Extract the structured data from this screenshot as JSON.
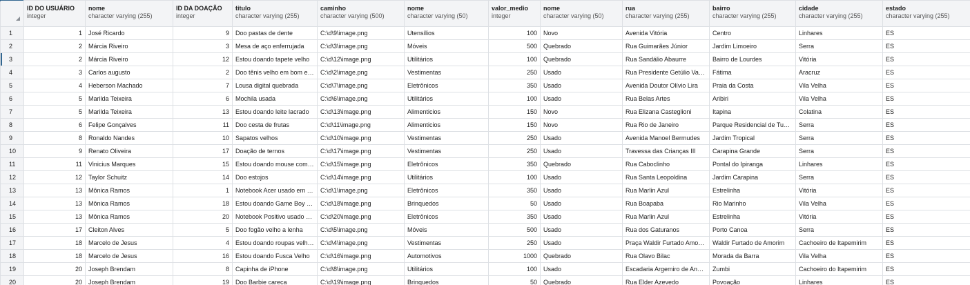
{
  "columns": [
    {
      "name": "ID DO USUÁRIO",
      "type": "integer",
      "numeric": true
    },
    {
      "name": "nome",
      "type": "character varying (255)",
      "numeric": false
    },
    {
      "name": "ID DA DOAÇÃO",
      "type": "integer",
      "numeric": true
    },
    {
      "name": "titulo",
      "type": "character varying (255)",
      "numeric": false
    },
    {
      "name": "caminho",
      "type": "character varying (500)",
      "numeric": false
    },
    {
      "name": "nome",
      "type": "character varying (50)",
      "numeric": false
    },
    {
      "name": "valor_medio",
      "type": "integer",
      "numeric": true
    },
    {
      "name": "nome",
      "type": "character varying (50)",
      "numeric": false
    },
    {
      "name": "rua",
      "type": "character varying (255)",
      "numeric": false
    },
    {
      "name": "bairro",
      "type": "character varying (255)",
      "numeric": false
    },
    {
      "name": "cidade",
      "type": "character varying (255)",
      "numeric": false
    },
    {
      "name": "estado",
      "type": "character varying (255)",
      "numeric": false
    }
  ],
  "rows": [
    {
      "n": "1",
      "c": [
        "1",
        "José Ricardo",
        "9",
        "Doo pastas de dente",
        "C:\\d\\9\\image.png",
        "Utensílios",
        "100",
        "Novo",
        "Avenida Vitória",
        "Centro",
        "Linhares",
        "ES"
      ]
    },
    {
      "n": "2",
      "c": [
        "2",
        "Márcia Riveiro",
        "3",
        "Mesa de aço enferrujada",
        "C:\\d\\3\\image.png",
        "Móveis",
        "500",
        "Quebrado",
        "Rua Guimarães Júnior",
        "Jardim Limoeiro",
        "Serra",
        "ES"
      ]
    },
    {
      "n": "3",
      "c": [
        "2",
        "Márcia Riveiro",
        "12",
        "Estou doando tapete velho",
        "C:\\d\\12\\image.png",
        "Utilitários",
        "100",
        "Quebrado",
        "Rua Sandálio Abaurre",
        "Bairro de Lourdes",
        "Vitória",
        "ES"
      ]
    },
    {
      "n": "4",
      "c": [
        "3",
        "Carlos augusto",
        "2",
        "Doo tênis velho em bom estado",
        "C:\\d\\2\\image.png",
        "Vestimentas",
        "250",
        "Usado",
        "Rua Presidente Getúlio Vargas",
        "Fátima",
        "Aracruz",
        "ES"
      ]
    },
    {
      "n": "5",
      "c": [
        "4",
        "Heberson Machado",
        "7",
        "Lousa digital quebrada",
        "C:\\d\\7\\image.png",
        "Eletrônicos",
        "350",
        "Usado",
        "Avenida Doutor Olívio Lira",
        "Praia da Costa",
        "Vila Velha",
        "ES"
      ]
    },
    {
      "n": "6",
      "c": [
        "5",
        "Marilda Teixeira",
        "6",
        "Mochila usada",
        "C:\\d\\6\\image.png",
        "Utilitários",
        "100",
        "Usado",
        "Rua Belas Artes",
        "Aribiri",
        "Vila Velha",
        "ES"
      ]
    },
    {
      "n": "7",
      "c": [
        "5",
        "Marilda Teixeira",
        "13",
        "Estou doando leite lacrado",
        "C:\\d\\13\\image.png",
        "Alimenticios",
        "150",
        "Novo",
        "Rua Elizana Casteglioni",
        "Itapina",
        "Colatina",
        "ES"
      ]
    },
    {
      "n": "8",
      "c": [
        "6",
        "Felipe Gonçalves",
        "11",
        "Doo cesta de frutas",
        "C:\\d\\11\\image.png",
        "Alimenticios",
        "150",
        "Novo",
        "Rua Rio de Janeiro",
        "Parque Residencial de Tubarão",
        "Serra",
        "ES"
      ]
    },
    {
      "n": "9",
      "c": [
        "8",
        "Ronaldo Nandes",
        "10",
        "Sapatos velhos",
        "C:\\d\\10\\image.png",
        "Vestimentas",
        "250",
        "Usado",
        "Avenida Manoel Bermudes",
        "Jardim Tropical",
        "Serra",
        "ES"
      ]
    },
    {
      "n": "10",
      "c": [
        "9",
        "Renato Oliveira",
        "17",
        "Doação de ternos",
        "C:\\d\\17\\image.png",
        "Vestimentas",
        "250",
        "Usado",
        "Travessa das Crianças III",
        "Carapina Grande",
        "Serra",
        "ES"
      ]
    },
    {
      "n": "11",
      "c": [
        "11",
        "Vinicius Marques",
        "15",
        "Estou doando mouse com defeito",
        "C:\\d\\15\\image.png",
        "Eletrônicos",
        "350",
        "Quebrado",
        "Rua Caboclinho",
        "Pontal do Ipiranga",
        "Linhares",
        "ES"
      ]
    },
    {
      "n": "12",
      "c": [
        "12",
        "Taylor Schuitz",
        "14",
        "Doo estojos",
        "C:\\d\\14\\image.png",
        "Utilitários",
        "100",
        "Usado",
        "Rua Santa Leopoldina",
        "Jardim Carapina",
        "Serra",
        "ES"
      ]
    },
    {
      "n": "13",
      "c": [
        "13",
        "Mônica Ramos",
        "1",
        "Notebook Acer usado em perfeito estado",
        "C:\\d\\1\\image.png",
        "Eletrônicos",
        "350",
        "Usado",
        "Rua Marlin Azul",
        "Estrelinha",
        "Vitória",
        "ES"
      ]
    },
    {
      "n": "14",
      "c": [
        "13",
        "Mônica Ramos",
        "18",
        "Estou doando Game Boy antigo",
        "C:\\d\\18\\image.png",
        "Brinquedos",
        "50",
        "Usado",
        "Rua Boapaba",
        "Rio Marinho",
        "Vila Velha",
        "ES"
      ]
    },
    {
      "n": "15",
      "c": [
        "13",
        "Mônica Ramos",
        "20",
        "Notebook Positivo usado em bom estado",
        "C:\\d\\20\\image.png",
        "Eletrônicos",
        "350",
        "Usado",
        "Rua Marlin Azul",
        "Estrelinha",
        "Vitória",
        "ES"
      ]
    },
    {
      "n": "16",
      "c": [
        "17",
        "Cleiton Alves",
        "5",
        "Doo fogão velho a lenha",
        "C:\\d\\5\\image.png",
        "Móveis",
        "500",
        "Usado",
        "Rua dos Gaturanos",
        "Porto Canoa",
        "Serra",
        "ES"
      ]
    },
    {
      "n": "17",
      "c": [
        "18",
        "Marcelo de Jesus",
        "4",
        "Estou doando roupas velhas",
        "C:\\d\\4\\image.png",
        "Vestimentas",
        "250",
        "Usado",
        "Praça Waldir Furtado Amorim",
        "Waldir Furtado de Amorim",
        "Cachoeiro de Itapemirim",
        "ES"
      ]
    },
    {
      "n": "18",
      "c": [
        "18",
        "Marcelo de Jesus",
        "16",
        "Estou doando Fusca Velho",
        "C:\\d\\16\\image.png",
        "Automotivos",
        "1000",
        "Quebrado",
        "Rua Olavo Bilac",
        "Morada da Barra",
        "Vila Velha",
        "ES"
      ]
    },
    {
      "n": "19",
      "c": [
        "20",
        "Joseph Brendam",
        "8",
        "Capinha de iPhone",
        "C:\\d\\8\\image.png",
        "Utilitários",
        "100",
        "Usado",
        "Escadaria Argemiro de Andrade",
        "Zumbi",
        "Cachoeiro do Itapemirim",
        "ES"
      ]
    },
    {
      "n": "20",
      "c": [
        "20",
        "Joseph Brendam",
        "19",
        "Doo Barbie careca",
        "C:\\d\\19\\image.png",
        "Brinquedos",
        "50",
        "Quebrado",
        "Rua Elder Azevedo",
        "Povoação",
        "Linhares",
        "ES"
      ]
    }
  ],
  "selected_row": "3"
}
